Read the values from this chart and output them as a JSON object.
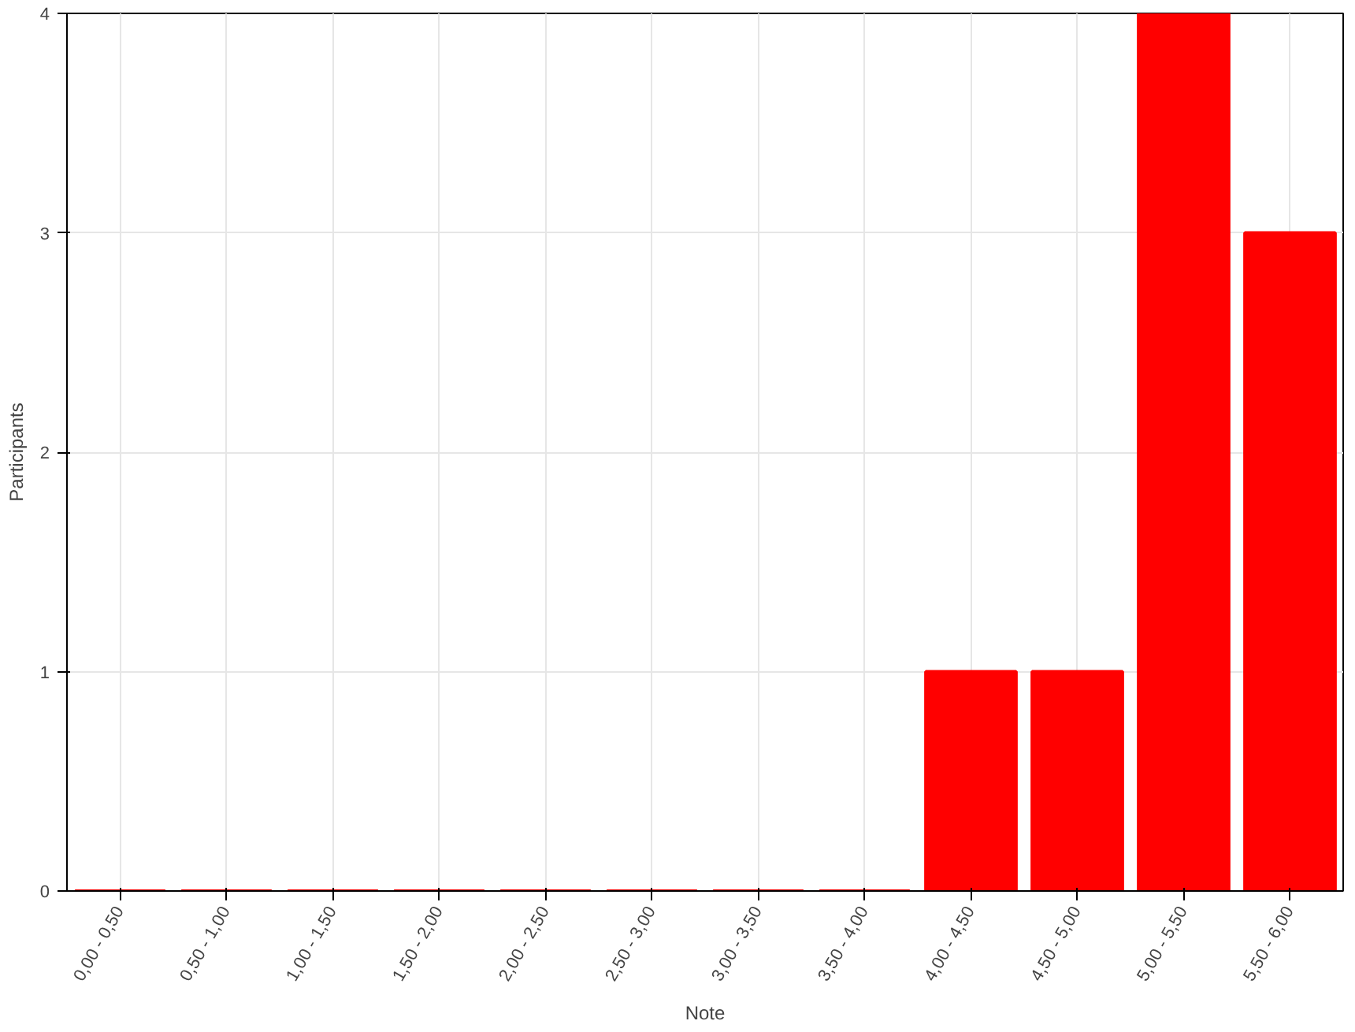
{
  "chart_data": {
    "type": "bar",
    "xlabel": "Note",
    "ylabel": "Participants",
    "categories": [
      "0,00 - 0,50",
      "0,50 - 1,00",
      "1,00 - 1,50",
      "1,50 - 2,00",
      "2,00 - 2,50",
      "2,50 - 3,00",
      "3,00 - 3,50",
      "3,50 - 4,00",
      "4,00 - 4,50",
      "4,50 - 5,00",
      "5,00 - 5,50",
      "5,50 - 6,00"
    ],
    "values": [
      0,
      0,
      0,
      0,
      0,
      0,
      0,
      0,
      1,
      1,
      4,
      3
    ],
    "color": "#ff0000",
    "ylim": [
      0,
      4
    ],
    "yticks": [
      0,
      1,
      2,
      3,
      4
    ],
    "grid": true
  }
}
